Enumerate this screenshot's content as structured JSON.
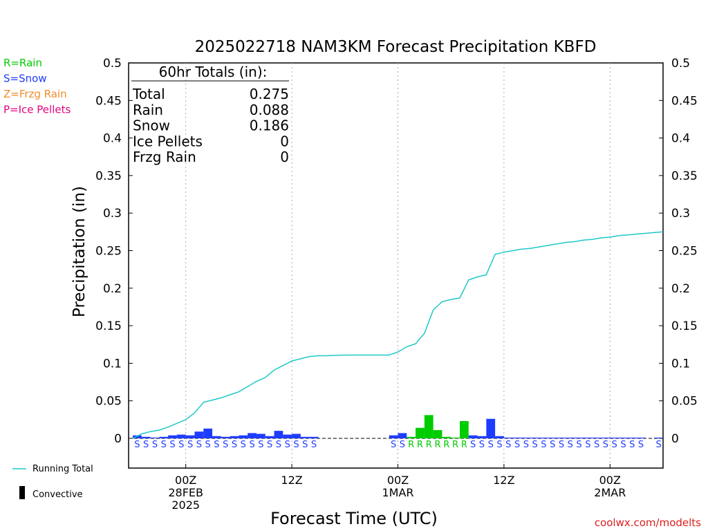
{
  "chart_data": {
    "type": "bar",
    "title": "2025022718 NAM3KM Forecast Precipitation KBFD",
    "xlabel": "Forecast Time (UTC)",
    "ylabel": "Precipitation (in)",
    "ylim": [
      0,
      0.5
    ],
    "yticks": [
      "0",
      "0.05",
      "0.1",
      "0.15",
      "0.2",
      "0.25",
      "0.3",
      "0.35",
      "0.4",
      "0.45",
      "0.5"
    ],
    "xtick_labels": [
      {
        "hour": 6,
        "lines": [
          "00Z",
          "28FEB",
          "2025"
        ]
      },
      {
        "hour": 18,
        "lines": [
          "12Z"
        ]
      },
      {
        "hour": 30,
        "lines": [
          "00Z",
          "1MAR"
        ]
      },
      {
        "hour": 42,
        "lines": [
          "12Z"
        ]
      },
      {
        "hour": 54,
        "lines": [
          "00Z",
          "2MAR"
        ]
      }
    ],
    "x_range_hours": [
      0,
      60
    ],
    "legend_types": [
      {
        "label": "R=Rain",
        "color": "#00cc00"
      },
      {
        "label": "S=Snow",
        "color": "#1e3cff"
      },
      {
        "label": "Z=Frzg Rain",
        "color": "#f08c28"
      },
      {
        "label": "P=Ice Pellets",
        "color": "#e6007e"
      }
    ],
    "totals_box": {
      "header": "60hr Totals (in):",
      "rows": [
        {
          "label": "Total",
          "value": "0.275"
        },
        {
          "label": "Rain",
          "value": "0.088"
        },
        {
          "label": "Snow",
          "value": "0.186"
        },
        {
          "label": "Ice Pellets",
          "value": "0"
        },
        {
          "label": "Frzg Rain",
          "value": "0"
        }
      ]
    },
    "hourly": [
      {
        "hour": 1,
        "value": 0.004,
        "type": "S"
      },
      {
        "hour": 2,
        "value": 0.002,
        "type": "S"
      },
      {
        "hour": 3,
        "value": 0.001,
        "type": "S"
      },
      {
        "hour": 4,
        "value": 0.002,
        "type": "S"
      },
      {
        "hour": 5,
        "value": 0.004,
        "type": "S"
      },
      {
        "hour": 6,
        "value": 0.005,
        "type": "S"
      },
      {
        "hour": 7,
        "value": 0.004,
        "type": "S"
      },
      {
        "hour": 8,
        "value": 0.009,
        "type": "S"
      },
      {
        "hour": 9,
        "value": 0.013,
        "type": "S"
      },
      {
        "hour": 10,
        "value": 0.003,
        "type": "S"
      },
      {
        "hour": 11,
        "value": 0.002,
        "type": "S"
      },
      {
        "hour": 12,
        "value": 0.003,
        "type": "S"
      },
      {
        "hour": 13,
        "value": 0.004,
        "type": "S"
      },
      {
        "hour": 14,
        "value": 0.007,
        "type": "S"
      },
      {
        "hour": 15,
        "value": 0.006,
        "type": "S"
      },
      {
        "hour": 16,
        "value": 0.003,
        "type": "S"
      },
      {
        "hour": 17,
        "value": 0.01,
        "type": "S"
      },
      {
        "hour": 18,
        "value": 0.005,
        "type": "S"
      },
      {
        "hour": 19,
        "value": 0.006,
        "type": "S"
      },
      {
        "hour": 20,
        "value": 0.002,
        "type": "S"
      },
      {
        "hour": 21,
        "value": 0.002,
        "type": "S"
      },
      {
        "hour": 22,
        "value": 0,
        "type": ""
      },
      {
        "hour": 23,
        "value": 0,
        "type": ""
      },
      {
        "hour": 24,
        "value": 0,
        "type": ""
      },
      {
        "hour": 25,
        "value": 0,
        "type": ""
      },
      {
        "hour": 26,
        "value": 0,
        "type": ""
      },
      {
        "hour": 27,
        "value": 0,
        "type": ""
      },
      {
        "hour": 28,
        "value": 0,
        "type": ""
      },
      {
        "hour": 29,
        "value": 0,
        "type": ""
      },
      {
        "hour": 30,
        "value": 0.004,
        "type": "S"
      },
      {
        "hour": 31,
        "value": 0.007,
        "type": "S"
      },
      {
        "hour": 32,
        "value": 0.002,
        "type": "R"
      },
      {
        "hour": 33,
        "value": 0.014,
        "type": "R"
      },
      {
        "hour": 34,
        "value": 0.031,
        "type": "R"
      },
      {
        "hour": 35,
        "value": 0.011,
        "type": "R"
      },
      {
        "hour": 36,
        "value": 0.002,
        "type": "R"
      },
      {
        "hour": 37,
        "value": 0.001,
        "type": "R"
      },
      {
        "hour": 38,
        "value": 0.023,
        "type": "R"
      },
      {
        "hour": 39,
        "value": 0.004,
        "type": "S"
      },
      {
        "hour": 40,
        "value": 0.003,
        "type": "S"
      },
      {
        "hour": 41,
        "value": 0.026,
        "type": "S"
      },
      {
        "hour": 42,
        "value": 0.003,
        "type": "S"
      },
      {
        "hour": 43,
        "value": 0.001,
        "type": "S"
      },
      {
        "hour": 44,
        "value": 0.001,
        "type": "S"
      },
      {
        "hour": 45,
        "value": 0.001,
        "type": "S"
      },
      {
        "hour": 46,
        "value": 0.001,
        "type": "S"
      },
      {
        "hour": 47,
        "value": 0.001,
        "type": "S"
      },
      {
        "hour": 48,
        "value": 0.001,
        "type": "S"
      },
      {
        "hour": 49,
        "value": 0.001,
        "type": "S"
      },
      {
        "hour": 50,
        "value": 0.001,
        "type": "S"
      },
      {
        "hour": 51,
        "value": 0.001,
        "type": "S"
      },
      {
        "hour": 52,
        "value": 0.001,
        "type": "S"
      },
      {
        "hour": 53,
        "value": 0.001,
        "type": "S"
      },
      {
        "hour": 54,
        "value": 0.001,
        "type": "S"
      },
      {
        "hour": 55,
        "value": 0.001,
        "type": "S"
      },
      {
        "hour": 56,
        "value": 0.001,
        "type": "S"
      },
      {
        "hour": 57,
        "value": 0.001,
        "type": "S"
      },
      {
        "hour": 58,
        "value": 0.001,
        "type": "S"
      },
      {
        "hour": 60,
        "value": 0.001,
        "type": "S"
      }
    ],
    "running_total": {
      "name": "Running Total",
      "color": "#1ec8c8",
      "points": [
        [
          0,
          0
        ],
        [
          1,
          0.006
        ],
        [
          2,
          0.009
        ],
        [
          3,
          0.011
        ],
        [
          4,
          0.015
        ],
        [
          5,
          0.02
        ],
        [
          6,
          0.025
        ],
        [
          7,
          0.034
        ],
        [
          8,
          0.048
        ],
        [
          9,
          0.051
        ],
        [
          10,
          0.054
        ],
        [
          11,
          0.058
        ],
        [
          12,
          0.062
        ],
        [
          13,
          0.069
        ],
        [
          14,
          0.076
        ],
        [
          15,
          0.081
        ],
        [
          16,
          0.091
        ],
        [
          17,
          0.097
        ],
        [
          18,
          0.103
        ],
        [
          19,
          0.106
        ],
        [
          20,
          0.109
        ],
        [
          21,
          0.11
        ],
        [
          22,
          0.11
        ],
        [
          24,
          0.111
        ],
        [
          27,
          0.111
        ],
        [
          29,
          0.111
        ],
        [
          30,
          0.115
        ],
        [
          31,
          0.122
        ],
        [
          32,
          0.126
        ],
        [
          33,
          0.14
        ],
        [
          34,
          0.171
        ],
        [
          35,
          0.182
        ],
        [
          36,
          0.185
        ],
        [
          37,
          0.187
        ],
        [
          38,
          0.211
        ],
        [
          39,
          0.215
        ],
        [
          40,
          0.218
        ],
        [
          41,
          0.245
        ],
        [
          42,
          0.248
        ],
        [
          43,
          0.25
        ],
        [
          44,
          0.252
        ],
        [
          45,
          0.253
        ],
        [
          46,
          0.255
        ],
        [
          47,
          0.257
        ],
        [
          48,
          0.259
        ],
        [
          49,
          0.261
        ],
        [
          50,
          0.262
        ],
        [
          51,
          0.264
        ],
        [
          52,
          0.265
        ],
        [
          53,
          0.267
        ],
        [
          54,
          0.268
        ],
        [
          55,
          0.27
        ],
        [
          56,
          0.271
        ],
        [
          57,
          0.272
        ],
        [
          58,
          0.273
        ],
        [
          59,
          0.274
        ],
        [
          60,
          0.275
        ]
      ]
    },
    "bottom_legend": {
      "line_label": "Running Total",
      "bar_label": "Convective"
    },
    "grid": "vertical-dotted",
    "watermark": "coolwx.com/modelts"
  }
}
